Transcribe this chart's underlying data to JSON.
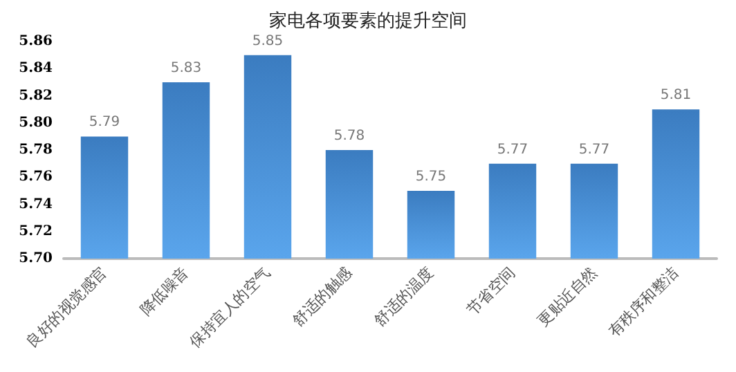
{
  "chart_data": {
    "type": "bar",
    "title": "家电各项要素的提升空间",
    "categories": [
      "良好的视觉感官",
      "降低噪音",
      "保持宜人的空气",
      "舒适的触感",
      "舒适的温度",
      "节省空间",
      "更贴近自然",
      "有秩序和整洁"
    ],
    "values": [
      5.79,
      5.83,
      5.85,
      5.78,
      5.75,
      5.77,
      5.77,
      5.81
    ],
    "color": "#3b7cc0",
    "ylim": [
      5.7,
      5.86
    ],
    "yticks": [
      {
        "value": 5.7,
        "label": "5.70"
      },
      5.72,
      5.74,
      5.76,
      5.78,
      {
        "value": 5.8,
        "label": "5.80"
      },
      5.82,
      5.84,
      5.86
    ],
    "data_labels": true,
    "grid": false
  }
}
